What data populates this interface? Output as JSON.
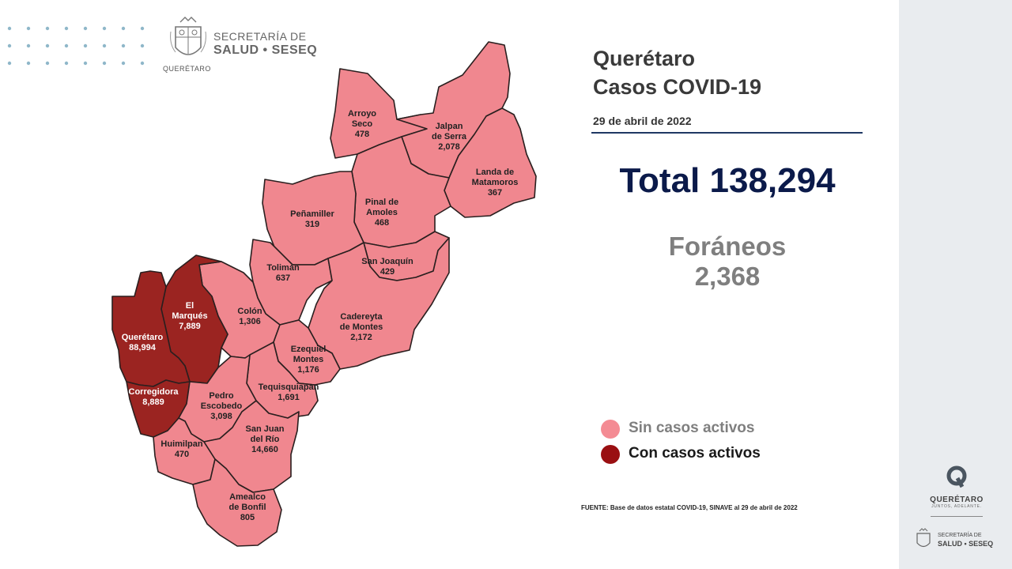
{
  "header": {
    "logo_line1": "SECRETARÍA DE",
    "logo_line2": "SALUD • SESEQ",
    "seal_caption": "QUERÉTARO"
  },
  "title": {
    "line1": "Querétaro",
    "line2": "Casos COVID-19"
  },
  "date": "29 de abril de 2022",
  "total": "Total 138,294",
  "foraneos": {
    "label": "Foráneos",
    "value": "2,368"
  },
  "legend": [
    {
      "label": "Sin casos activos",
      "color": "#f48b93",
      "text_color": "#7f7f7f"
    },
    {
      "label": "Con casos activos",
      "color": "#9a0f12",
      "text_color": "#1a1a1a"
    }
  ],
  "colors": {
    "inactive": "#f0878f",
    "active": "#9b2421",
    "border": "#2a1f1f"
  },
  "municipalities": [
    {
      "id": "arroyo-seco",
      "lines": [
        "Arroyo",
        "Seco",
        "478"
      ],
      "active": false
    },
    {
      "id": "jalpan",
      "lines": [
        "Jalpan",
        "de Serra",
        "2,078"
      ],
      "active": false
    },
    {
      "id": "landa",
      "lines": [
        "Landa de",
        "Matamoros",
        "367"
      ],
      "active": false
    },
    {
      "id": "pinal",
      "lines": [
        "Pinal de",
        "Amoles",
        "468"
      ],
      "active": false
    },
    {
      "id": "penamiller",
      "lines": [
        "Peñamiller",
        "319"
      ],
      "active": false
    },
    {
      "id": "san-joaquin",
      "lines": [
        "San Joaquín",
        "429"
      ],
      "active": false
    },
    {
      "id": "toliman",
      "lines": [
        "Tolimán",
        "637"
      ],
      "active": false
    },
    {
      "id": "cadereyta",
      "lines": [
        "Cadereyta",
        "de Montes",
        "2,172"
      ],
      "active": false
    },
    {
      "id": "colon",
      "lines": [
        "Colón",
        "1,306"
      ],
      "active": false
    },
    {
      "id": "el-marques",
      "lines": [
        "El",
        "Marqués",
        "7,889"
      ],
      "active": true
    },
    {
      "id": "queretaro",
      "lines": [
        "Querétaro",
        "88,994"
      ],
      "active": true
    },
    {
      "id": "ezequiel",
      "lines": [
        "Ezequiel",
        "Montes",
        "1,176"
      ],
      "active": false
    },
    {
      "id": "tequisquiapan",
      "lines": [
        "Tequisquiapan",
        "1,691"
      ],
      "active": false
    },
    {
      "id": "corregidora",
      "lines": [
        "Corregidora",
        "8,889"
      ],
      "active": true
    },
    {
      "id": "pedro-escobedo",
      "lines": [
        "Pedro",
        "Escobedo",
        "3,098"
      ],
      "active": false
    },
    {
      "id": "huimilpan",
      "lines": [
        "Huimilpan",
        "470"
      ],
      "active": false
    },
    {
      "id": "san-juan",
      "lines": [
        "San Juan",
        "del Río",
        "14,660"
      ],
      "active": false
    },
    {
      "id": "amealco",
      "lines": [
        "Amealco",
        "de Bonfil",
        "805"
      ],
      "active": false
    }
  ],
  "source": "FUENTE: Base de datos estatal COVID-19, SINAVE al 29 de abril de 2022",
  "sidebar": {
    "brand_name": "QUERÉTARO",
    "brand_tagline": "JUNTOS, ADELANTE.",
    "sec_line1": "SECRETARÍA DE",
    "sec_line2": "SALUD • SESEQ"
  }
}
